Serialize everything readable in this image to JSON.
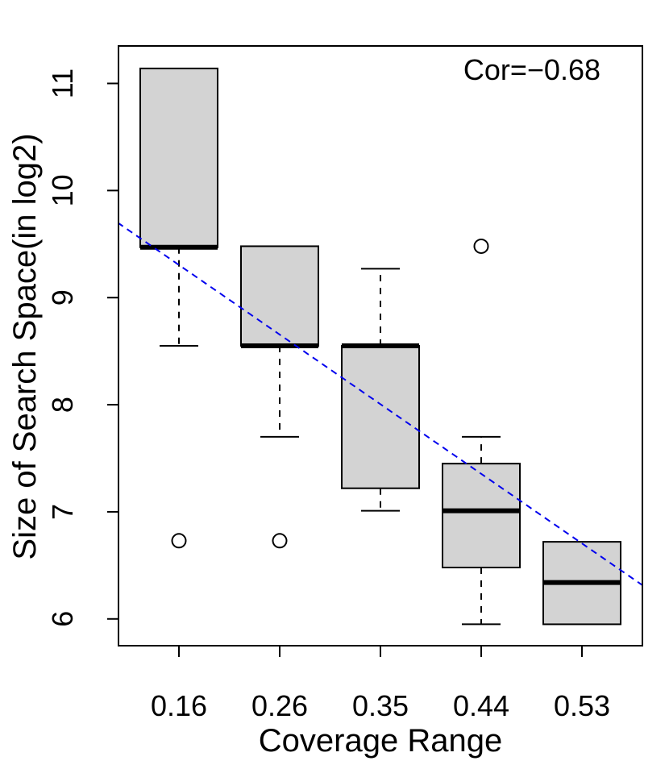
{
  "chart_data": {
    "type": "boxplot",
    "title": "",
    "xlabel": "Coverage Range",
    "ylabel": "Size of Search Space(in log2)",
    "annotation": "Cor=−0.68",
    "categories": [
      "0.16",
      "0.26",
      "0.35",
      "0.44",
      "0.53"
    ],
    "yticks": [
      6,
      7,
      8,
      9,
      10,
      11
    ],
    "ylim": [
      5.75,
      11.35
    ],
    "boxes": [
      {
        "label": "0.16",
        "whisker_low": 8.55,
        "q1": 9.47,
        "median": 9.47,
        "q3": 11.14,
        "whisker_high": 11.14,
        "outliers": [
          6.73
        ]
      },
      {
        "label": "0.26",
        "whisker_low": 7.7,
        "q1": 8.55,
        "median": 8.55,
        "q3": 9.48,
        "whisker_high": 9.48,
        "outliers": [
          6.73
        ]
      },
      {
        "label": "0.35",
        "whisker_low": 7.01,
        "q1": 7.22,
        "median": 8.55,
        "q3": 8.55,
        "whisker_high": 9.27,
        "outliers": []
      },
      {
        "label": "0.44",
        "whisker_low": 5.95,
        "q1": 6.48,
        "median": 7.01,
        "q3": 7.45,
        "whisker_high": 7.7,
        "outliers": [
          9.48
        ]
      },
      {
        "label": "0.53",
        "whisker_low": 5.95,
        "q1": 5.95,
        "median": 6.34,
        "q3": 6.72,
        "whisker_high": 6.72,
        "outliers": []
      }
    ],
    "trendline": {
      "style": "dashed",
      "color": "#0000ee",
      "x_start": 0.3,
      "y_start": 9.76,
      "x_end": 5.7,
      "y_end": 6.25
    },
    "colors": {
      "box_fill": "#d3d3d3",
      "stroke": "#000000"
    }
  }
}
